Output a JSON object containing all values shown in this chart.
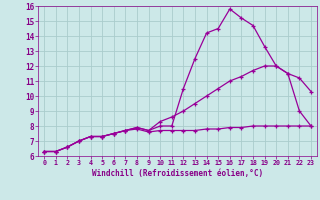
{
  "xlabel": "Windchill (Refroidissement éolien,°C)",
  "bg_color": "#cce8e8",
  "line_color": "#990099",
  "grid_color": "#aacccc",
  "text_color": "#880088",
  "xlim": [
    -0.5,
    23.5
  ],
  "ylim": [
    6,
    16
  ],
  "xticks": [
    0,
    1,
    2,
    3,
    4,
    5,
    6,
    7,
    8,
    9,
    10,
    11,
    12,
    13,
    14,
    15,
    16,
    17,
    18,
    19,
    20,
    21,
    22,
    23
  ],
  "yticks": [
    6,
    7,
    8,
    9,
    10,
    11,
    12,
    13,
    14,
    15,
    16
  ],
  "curve1_x": [
    0,
    1,
    2,
    3,
    4,
    5,
    6,
    7,
    8,
    9,
    10,
    11,
    12,
    13,
    14,
    15,
    16,
    17,
    18,
    19,
    20,
    21,
    22,
    23
  ],
  "curve1_y": [
    6.3,
    6.3,
    6.6,
    7.0,
    7.3,
    7.3,
    7.5,
    7.7,
    7.9,
    7.7,
    8.0,
    8.0,
    10.5,
    12.5,
    14.2,
    14.5,
    15.8,
    15.2,
    14.7,
    13.3,
    12.0,
    11.5,
    11.2,
    10.3
  ],
  "curve2_x": [
    0,
    1,
    2,
    3,
    4,
    5,
    6,
    7,
    8,
    9,
    10,
    11,
    12,
    13,
    14,
    15,
    16,
    17,
    18,
    19,
    20,
    21,
    22,
    23
  ],
  "curve2_y": [
    6.3,
    6.3,
    6.6,
    7.0,
    7.3,
    7.3,
    7.5,
    7.7,
    7.9,
    7.7,
    8.3,
    8.6,
    9.0,
    9.5,
    10.0,
    10.5,
    11.0,
    11.3,
    11.7,
    12.0,
    12.0,
    11.5,
    9.0,
    8.0
  ],
  "curve3_x": [
    0,
    1,
    2,
    3,
    4,
    5,
    6,
    7,
    8,
    9,
    10,
    11,
    12,
    13,
    14,
    15,
    16,
    17,
    18,
    19,
    20,
    21,
    22,
    23
  ],
  "curve3_y": [
    6.3,
    6.3,
    6.6,
    7.0,
    7.3,
    7.3,
    7.5,
    7.7,
    7.8,
    7.6,
    7.7,
    7.7,
    7.7,
    7.7,
    7.8,
    7.8,
    7.9,
    7.9,
    8.0,
    8.0,
    8.0,
    8.0,
    8.0,
    8.0
  ]
}
